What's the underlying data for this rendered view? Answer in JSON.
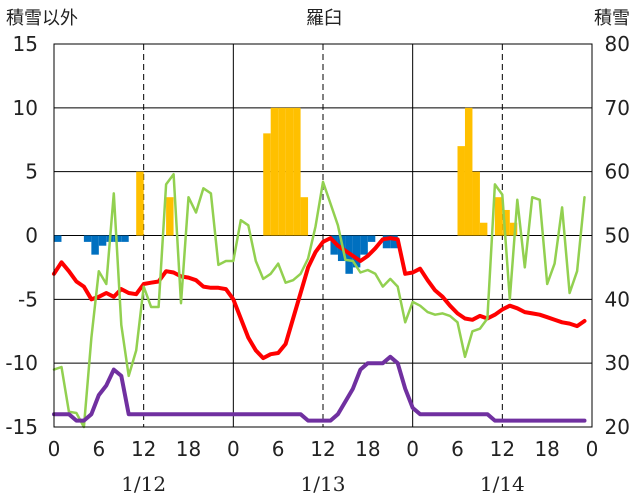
{
  "chart_data": {
    "type": "bar+line",
    "title": "羅臼",
    "left_axis_title": "積雪以外",
    "right_axis_title": "積雪",
    "left_ylim": [
      -15,
      15
    ],
    "left_ticks": [
      "15",
      "10",
      "5",
      "0",
      "-5",
      "-10",
      "-15"
    ],
    "right_ylim": [
      20,
      80
    ],
    "right_ticks": [
      "80",
      "70",
      "60",
      "50",
      "40",
      "30",
      "20"
    ],
    "x_hour_ticks": [
      "0",
      "6",
      "12",
      "18",
      "0",
      "6",
      "12",
      "18",
      "0",
      "6",
      "12",
      "18",
      "0"
    ],
    "x_dates": [
      "1/12",
      "1/13",
      "1/14"
    ],
    "xlim": [
      0,
      72
    ],
    "grid": true,
    "colors": {
      "snowfall_bar": "#FFC000",
      "snow_change_negative_bar": "#0070C0",
      "temperature_line": "#FF0000",
      "snow_depth_line": "#7030A0",
      "wind_line": "#92D050",
      "grid": "#000000"
    },
    "series": [
      {
        "key": "snowfall",
        "kind": "bar",
        "axis": "left",
        "color": "#FFC000",
        "points": [
          [
            11.5,
            5
          ],
          [
            15.5,
            3
          ],
          [
            28.5,
            8
          ],
          [
            29.5,
            10
          ],
          [
            30.5,
            10
          ],
          [
            31.5,
            10
          ],
          [
            32.5,
            10
          ],
          [
            33.5,
            3
          ],
          [
            54.5,
            7
          ],
          [
            55.5,
            10
          ],
          [
            56.5,
            5
          ],
          [
            57.5,
            1
          ],
          [
            59.5,
            3
          ],
          [
            60.5,
            2
          ],
          [
            61.5,
            1
          ]
        ]
      },
      {
        "key": "snow_change_negative",
        "kind": "bar",
        "axis": "left",
        "color": "#0070C0",
        "points": [
          [
            0.5,
            -0.5
          ],
          [
            4.5,
            -0.5
          ],
          [
            5.5,
            -1.5
          ],
          [
            6.5,
            -0.8
          ],
          [
            7.5,
            -0.5
          ],
          [
            8.5,
            -0.5
          ],
          [
            9.5,
            -0.5
          ],
          [
            37.5,
            -1.5
          ],
          [
            38.5,
            -2
          ],
          [
            39.5,
            -3
          ],
          [
            40.5,
            -2.5
          ],
          [
            41.5,
            -1.5
          ],
          [
            42.5,
            -0.5
          ],
          [
            44.5,
            -1
          ],
          [
            45.5,
            -1
          ]
        ]
      },
      {
        "key": "temperature",
        "kind": "line",
        "axis": "left",
        "color": "#FF0000",
        "points": [
          [
            0,
            -3
          ],
          [
            1,
            -2.1
          ],
          [
            2,
            -2.8
          ],
          [
            3,
            -3.6
          ],
          [
            4,
            -4
          ],
          [
            5,
            -5
          ],
          [
            6,
            -4.8
          ],
          [
            7,
            -4.5
          ],
          [
            8,
            -4.8
          ],
          [
            9,
            -4.2
          ],
          [
            10,
            -4.5
          ],
          [
            11,
            -4.6
          ],
          [
            12,
            -3.8
          ],
          [
            13,
            -3.7
          ],
          [
            14,
            -3.6
          ],
          [
            15,
            -2.8
          ],
          [
            16,
            -2.9
          ],
          [
            17,
            -3.2
          ],
          [
            18,
            -3.3
          ],
          [
            19,
            -3.5
          ],
          [
            20,
            -4
          ],
          [
            21,
            -4.1
          ],
          [
            22,
            -4.1
          ],
          [
            23,
            -4.2
          ],
          [
            24,
            -5
          ],
          [
            25,
            -6.5
          ],
          [
            26,
            -8
          ],
          [
            27,
            -9
          ],
          [
            28,
            -9.6
          ],
          [
            29,
            -9.3
          ],
          [
            30,
            -9.2
          ],
          [
            31,
            -8.5
          ],
          [
            32,
            -6.5
          ],
          [
            33,
            -4.5
          ],
          [
            34,
            -2.5
          ],
          [
            35,
            -1.3
          ],
          [
            36,
            -0.5
          ],
          [
            37,
            -0.2
          ],
          [
            38,
            -0.8
          ],
          [
            39,
            -1.2
          ],
          [
            40,
            -1.6
          ],
          [
            41,
            -2
          ],
          [
            42,
            -1.6
          ],
          [
            43,
            -1
          ],
          [
            44,
            -0.3
          ],
          [
            45,
            -0.2
          ],
          [
            46,
            -0.3
          ],
          [
            47,
            -3
          ],
          [
            48,
            -2.9
          ],
          [
            49,
            -2.6
          ],
          [
            50,
            -3.5
          ],
          [
            51,
            -4.3
          ],
          [
            52,
            -4.8
          ],
          [
            53,
            -5.5
          ],
          [
            54,
            -6.1
          ],
          [
            55,
            -6.5
          ],
          [
            56,
            -6.6
          ],
          [
            57,
            -6.3
          ],
          [
            58,
            -6.5
          ],
          [
            59,
            -6.2
          ],
          [
            60,
            -5.8
          ],
          [
            61,
            -5.5
          ],
          [
            62,
            -5.7
          ],
          [
            63,
            -6
          ],
          [
            64,
            -6.1
          ],
          [
            65,
            -6.2
          ],
          [
            66,
            -6.4
          ],
          [
            67,
            -6.6
          ],
          [
            68,
            -6.8
          ],
          [
            69,
            -6.9
          ],
          [
            70,
            -7.1
          ],
          [
            71,
            -6.7
          ]
        ]
      },
      {
        "key": "wind",
        "kind": "line",
        "axis": "left",
        "color": "#92D050",
        "points": [
          [
            0,
            -10.5
          ],
          [
            1,
            -10.3
          ],
          [
            2,
            -13.8
          ],
          [
            3,
            -13.9
          ],
          [
            4,
            -15
          ],
          [
            5,
            -8
          ],
          [
            6,
            -2.8
          ],
          [
            7,
            -3.8
          ],
          [
            8,
            3.3
          ],
          [
            9,
            -7
          ],
          [
            10,
            -11
          ],
          [
            11,
            -9
          ],
          [
            12,
            -4
          ],
          [
            13,
            -5.6
          ],
          [
            14,
            -5.6
          ],
          [
            15,
            4
          ],
          [
            16,
            4.8
          ],
          [
            17,
            -5.3
          ],
          [
            18,
            3
          ],
          [
            19,
            1.8
          ],
          [
            20,
            3.7
          ],
          [
            21,
            3.3
          ],
          [
            22,
            -2.3
          ],
          [
            23,
            -2
          ],
          [
            24,
            -2
          ],
          [
            25,
            1.2
          ],
          [
            26,
            0.8
          ],
          [
            27,
            -2
          ],
          [
            28,
            -3.4
          ],
          [
            29,
            -3
          ],
          [
            30,
            -2.2
          ],
          [
            31,
            -3.7
          ],
          [
            32,
            -3.5
          ],
          [
            33,
            -3
          ],
          [
            34,
            -1.8
          ],
          [
            35,
            0.7
          ],
          [
            36,
            4.2
          ],
          [
            37,
            2.5
          ],
          [
            38,
            0.8
          ],
          [
            39,
            -1.9
          ],
          [
            40,
            -2
          ],
          [
            41,
            -2.9
          ],
          [
            42,
            -2.7
          ],
          [
            43,
            -3
          ],
          [
            44,
            -4
          ],
          [
            45,
            -3.4
          ],
          [
            46,
            -4
          ],
          [
            47,
            -6.8
          ],
          [
            48,
            -5.2
          ],
          [
            49,
            -5.5
          ],
          [
            50,
            -6
          ],
          [
            51,
            -6.2
          ],
          [
            52,
            -6.1
          ],
          [
            53,
            -6.3
          ],
          [
            54,
            -6.8
          ],
          [
            55,
            -9.5
          ],
          [
            56,
            -7.5
          ],
          [
            57,
            -7.3
          ],
          [
            58,
            -6.5
          ],
          [
            59,
            4
          ],
          [
            60,
            3.2
          ],
          [
            61,
            -5
          ],
          [
            62,
            2.8
          ],
          [
            63,
            -2.5
          ],
          [
            64,
            3
          ],
          [
            65,
            2.8
          ],
          [
            66,
            -3.8
          ],
          [
            67,
            -2.2
          ],
          [
            68,
            2.2
          ],
          [
            69,
            -4.5
          ],
          [
            70,
            -2.8
          ],
          [
            71,
            3
          ]
        ]
      },
      {
        "key": "snow_depth",
        "kind": "line",
        "axis": "right",
        "color": "#7030A0",
        "points": [
          [
            0,
            22
          ],
          [
            1,
            22
          ],
          [
            2,
            22
          ],
          [
            3,
            21
          ],
          [
            4,
            21
          ],
          [
            5,
            22
          ],
          [
            6,
            25
          ],
          [
            7,
            26.5
          ],
          [
            8,
            29
          ],
          [
            9,
            28
          ],
          [
            10,
            22
          ],
          [
            11,
            22
          ],
          [
            12,
            22
          ],
          [
            13,
            22
          ],
          [
            14,
            22
          ],
          [
            15,
            22
          ],
          [
            16,
            22
          ],
          [
            17,
            22
          ],
          [
            18,
            22
          ],
          [
            19,
            22
          ],
          [
            20,
            22
          ],
          [
            21,
            22
          ],
          [
            22,
            22
          ],
          [
            23,
            22
          ],
          [
            24,
            22
          ],
          [
            25,
            22
          ],
          [
            26,
            22
          ],
          [
            27,
            22
          ],
          [
            28,
            22
          ],
          [
            29,
            22
          ],
          [
            30,
            22
          ],
          [
            31,
            22
          ],
          [
            32,
            22
          ],
          [
            33,
            22
          ],
          [
            34,
            21
          ],
          [
            35,
            21
          ],
          [
            36,
            21
          ],
          [
            37,
            21
          ],
          [
            38,
            22
          ],
          [
            39,
            24
          ],
          [
            40,
            26
          ],
          [
            41,
            29
          ],
          [
            42,
            30
          ],
          [
            43,
            30
          ],
          [
            44,
            30
          ],
          [
            45,
            31
          ],
          [
            46,
            30
          ],
          [
            47,
            26
          ],
          [
            48,
            23
          ],
          [
            49,
            22
          ],
          [
            50,
            22
          ],
          [
            51,
            22
          ],
          [
            52,
            22
          ],
          [
            53,
            22
          ],
          [
            54,
            22
          ],
          [
            55,
            22
          ],
          [
            56,
            22
          ],
          [
            57,
            22
          ],
          [
            58,
            22
          ],
          [
            59,
            21
          ],
          [
            60,
            21
          ],
          [
            61,
            21
          ],
          [
            62,
            21
          ],
          [
            63,
            21
          ],
          [
            64,
            21
          ],
          [
            65,
            21
          ],
          [
            66,
            21
          ],
          [
            67,
            21
          ],
          [
            68,
            21
          ],
          [
            69,
            21
          ],
          [
            70,
            21
          ],
          [
            71,
            21
          ]
        ]
      }
    ]
  }
}
